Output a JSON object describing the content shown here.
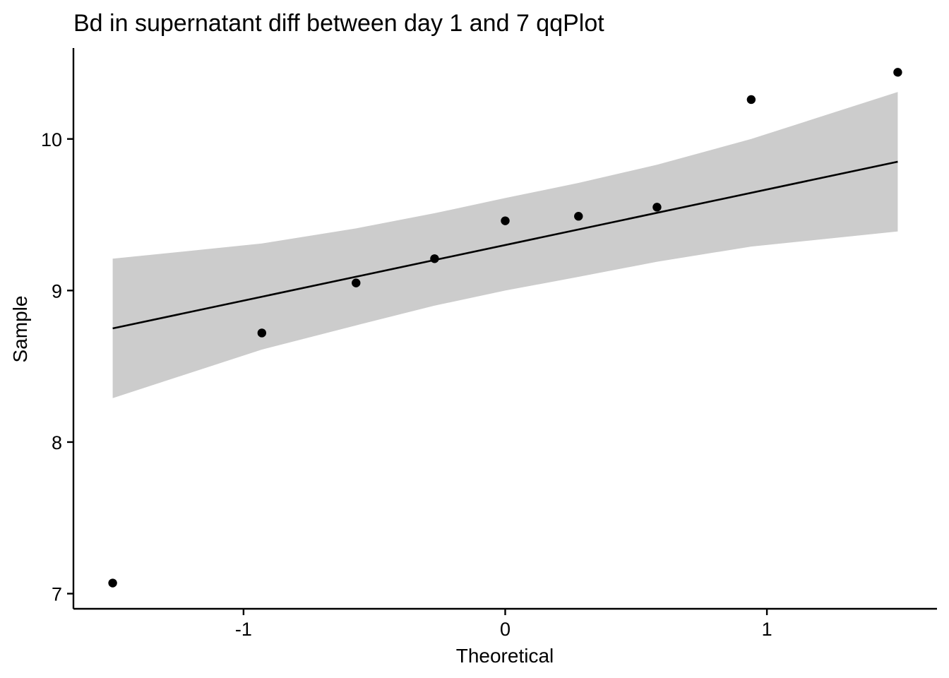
{
  "chart_data": {
    "type": "scatter",
    "title": "Bd in supernatant diff between day 1 and 7 qqPlot",
    "xlabel": "Theoretical",
    "ylabel": "Sample",
    "xlim": [
      -1.65,
      1.65
    ],
    "ylim": [
      6.9,
      10.6
    ],
    "x_ticks": [
      {
        "value": -1,
        "label": "-1"
      },
      {
        "value": 0,
        "label": "0"
      },
      {
        "value": 1,
        "label": "1"
      }
    ],
    "y_ticks": [
      {
        "value": 7,
        "label": "7"
      },
      {
        "value": 8,
        "label": "8"
      },
      {
        "value": 9,
        "label": "9"
      },
      {
        "value": 10,
        "label": "10"
      }
    ],
    "grid": false,
    "points": [
      {
        "x": -1.5,
        "y": 7.07
      },
      {
        "x": -0.93,
        "y": 8.72
      },
      {
        "x": -0.57,
        "y": 9.05
      },
      {
        "x": -0.27,
        "y": 9.21
      },
      {
        "x": 0.0,
        "y": 9.46
      },
      {
        "x": 0.28,
        "y": 9.49
      },
      {
        "x": 0.58,
        "y": 9.55
      },
      {
        "x": 0.94,
        "y": 10.26
      },
      {
        "x": 1.5,
        "y": 10.44
      }
    ],
    "reference_line": {
      "x": [
        -1.5,
        1.5
      ],
      "y": [
        8.75,
        9.85
      ]
    },
    "confidence_band": {
      "x": [
        -1.5,
        -0.93,
        -0.57,
        -0.27,
        0.0,
        0.28,
        0.58,
        0.94,
        1.5
      ],
      "lower": [
        8.29,
        8.61,
        8.77,
        8.9,
        9.0,
        9.09,
        9.19,
        9.29,
        9.39
      ],
      "upper": [
        9.21,
        9.31,
        9.41,
        9.51,
        9.61,
        9.71,
        9.83,
        10.0,
        10.31
      ]
    },
    "colors": {
      "points": "#000000",
      "band": "#cccccc",
      "line": "#000000"
    }
  }
}
